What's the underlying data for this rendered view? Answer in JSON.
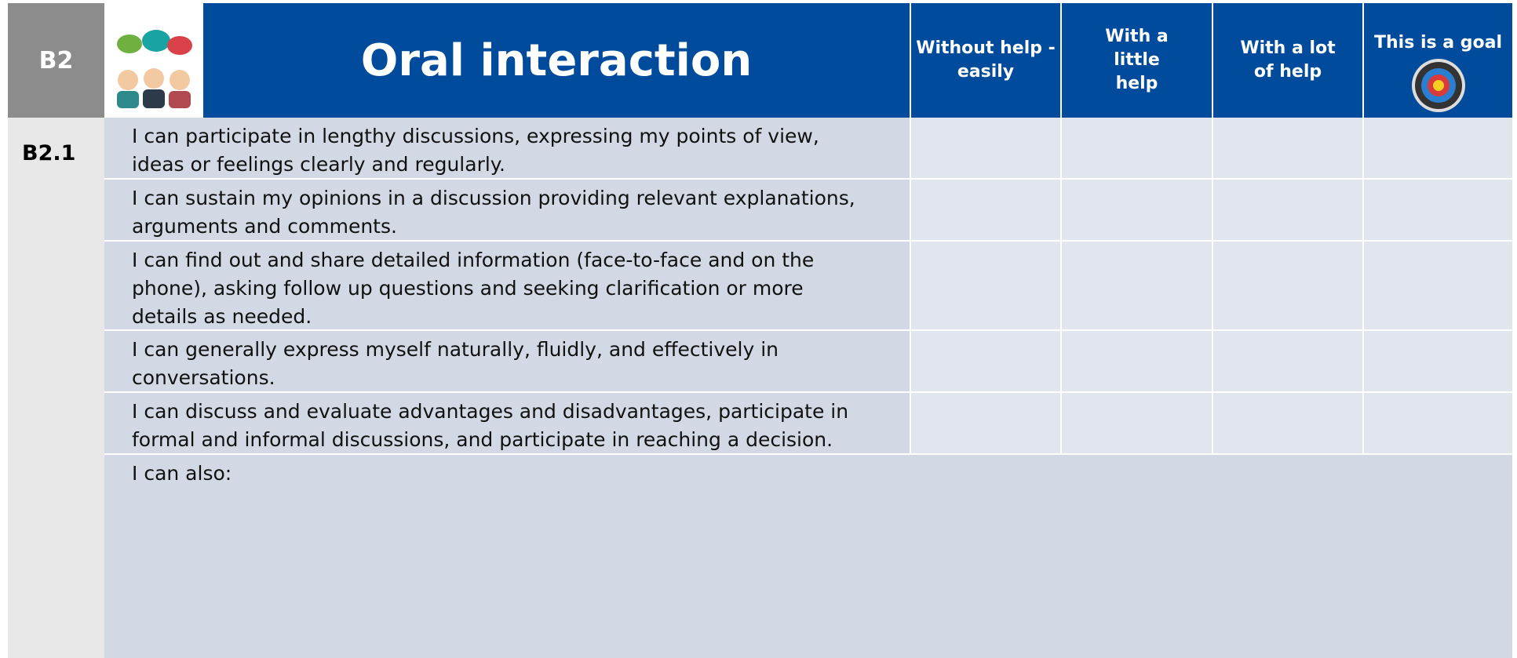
{
  "header": {
    "level": "B2",
    "title": "Oral interaction",
    "columns": [
      "Without help - easily",
      "With a little help",
      "With a lot of help",
      "This is a goal"
    ]
  },
  "table": {
    "sublevel": "B2.1",
    "rows": [
      "I can participate in lengthy discussions, expressing my points of view, ideas or feelings clearly and regularly.",
      "I can sustain my opinions in a discussion providing relevant explanations, arguments and comments.",
      "I can find out and share detailed information (face-to-face and on the phone), asking follow up questions and seeking clarification or more details as needed.",
      "I can generally express myself naturally, fluidly, and effectively in conversations.",
      "I can discuss and evaluate advantages and disadvantages, participate in formal and informal discussions, and participate in reaching a decision."
    ],
    "also": "I can also:"
  }
}
